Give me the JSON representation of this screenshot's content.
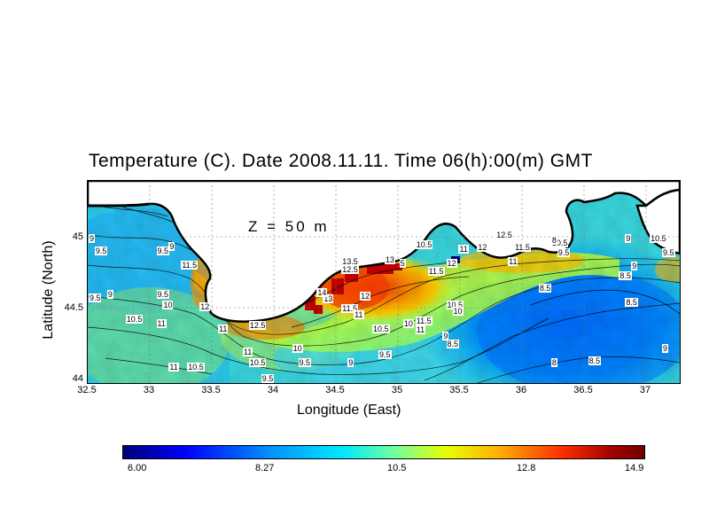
{
  "title": "Temperature (C). Date 2008.11.11. Time 06(h):00(m) GMT",
  "depth_label": "Z = 50 m",
  "axes": {
    "xlabel": "Longitude (East)",
    "ylabel": "Latitude (North)",
    "xticks": [
      "32.5",
      "33",
      "33.5",
      "34",
      "34.5",
      "35",
      "35.5",
      "36",
      "36.5",
      "37"
    ],
    "yticks": [
      "45",
      "44.5",
      "44"
    ],
    "xlim": [
      32.5,
      37.3
    ],
    "ylim": [
      44,
      45.3
    ]
  },
  "colorbar": {
    "labels": [
      "6.00",
      "8.27",
      "10.5",
      "12.8",
      "14.9"
    ],
    "min": 6.0,
    "max": 14.9
  },
  "contour_labels": [
    {
      "text": "9.5",
      "lon": 32.6,
      "lat": 44.85
    },
    {
      "text": "9.5",
      "lon": 33.1,
      "lat": 44.85
    },
    {
      "text": "9",
      "lon": 33.2,
      "lat": 44.88
    },
    {
      "text": "9.5",
      "lon": 32.55,
      "lat": 44.55
    },
    {
      "text": "9",
      "lon": 32.7,
      "lat": 44.57
    },
    {
      "text": "9.5",
      "lon": 33.1,
      "lat": 44.57
    },
    {
      "text": "11.5",
      "lon": 33.3,
      "lat": 44.76
    },
    {
      "text": "10",
      "lon": 33.15,
      "lat": 44.5
    },
    {
      "text": "12",
      "lon": 33.45,
      "lat": 44.49
    },
    {
      "text": "10.5",
      "lon": 32.85,
      "lat": 44.41
    },
    {
      "text": "11",
      "lon": 33.1,
      "lat": 44.38
    },
    {
      "text": "11",
      "lon": 33.6,
      "lat": 44.35
    },
    {
      "text": "12.5",
      "lon": 33.85,
      "lat": 44.37
    },
    {
      "text": "11",
      "lon": 33.8,
      "lat": 44.2
    },
    {
      "text": "11",
      "lon": 33.2,
      "lat": 44.1
    },
    {
      "text": "10.5",
      "lon": 33.35,
      "lat": 44.1
    },
    {
      "text": "10.5",
      "lon": 33.85,
      "lat": 44.13
    },
    {
      "text": "9.5",
      "lon": 33.95,
      "lat": 44.03
    },
    {
      "text": "10",
      "lon": 34.2,
      "lat": 44.22
    },
    {
      "text": "9.5",
      "lon": 34.25,
      "lat": 44.13
    },
    {
      "text": "13",
      "lon": 34.45,
      "lat": 44.54
    },
    {
      "text": "14",
      "lon": 34.4,
      "lat": 44.58
    },
    {
      "text": "13.5",
      "lon": 34.6,
      "lat": 44.78
    },
    {
      "text": "12.5",
      "lon": 34.6,
      "lat": 44.73
    },
    {
      "text": "12",
      "lon": 34.75,
      "lat": 44.56
    },
    {
      "text": "11.5",
      "lon": 34.6,
      "lat": 44.48
    },
    {
      "text": "11",
      "lon": 34.7,
      "lat": 44.44
    },
    {
      "text": "9",
      "lon": 34.65,
      "lat": 44.13
    },
    {
      "text": "13",
      "lon": 34.95,
      "lat": 44.79
    },
    {
      "text": "5",
      "lon": 35.07,
      "lat": 44.77
    },
    {
      "text": "10.5",
      "lon": 34.85,
      "lat": 44.35
    },
    {
      "text": "10",
      "lon": 35.1,
      "lat": 44.38
    },
    {
      "text": "11.5",
      "lon": 35.2,
      "lat": 44.4
    },
    {
      "text": "11",
      "lon": 35.2,
      "lat": 44.34
    },
    {
      "text": "9.5",
      "lon": 34.9,
      "lat": 44.18
    },
    {
      "text": "10.5",
      "lon": 35.2,
      "lat": 44.89
    },
    {
      "text": "12",
      "lon": 35.45,
      "lat": 44.77
    },
    {
      "text": "11.5",
      "lon": 35.3,
      "lat": 44.72
    },
    {
      "text": "10.5",
      "lon": 35.45,
      "lat": 44.5
    },
    {
      "text": "10",
      "lon": 35.5,
      "lat": 44.46
    },
    {
      "text": "9",
      "lon": 35.42,
      "lat": 44.3
    },
    {
      "text": "8.5",
      "lon": 35.45,
      "lat": 44.25
    },
    {
      "text": "11",
      "lon": 35.55,
      "lat": 44.86
    },
    {
      "text": "12",
      "lon": 35.7,
      "lat": 44.87
    },
    {
      "text": "12.5",
      "lon": 35.85,
      "lat": 44.95
    },
    {
      "text": "11.5",
      "lon": 36.0,
      "lat": 44.87
    },
    {
      "text": "11",
      "lon": 35.95,
      "lat": 44.78
    },
    {
      "text": "10.5",
      "lon": 36.3,
      "lat": 44.9
    },
    {
      "text": "9.5",
      "lon": 36.35,
      "lat": 44.84
    },
    {
      "text": "8.5",
      "lon": 36.2,
      "lat": 44.61
    },
    {
      "text": "8",
      "lon": 36.3,
      "lat": 44.13
    },
    {
      "text": "8.5",
      "lon": 36.6,
      "lat": 44.14
    },
    {
      "text": "8.5",
      "lon": 36.85,
      "lat": 44.69
    },
    {
      "text": "9",
      "lon": 36.95,
      "lat": 44.75
    },
    {
      "text": "8.5",
      "lon": 36.9,
      "lat": 44.52
    },
    {
      "text": "9",
      "lon": 36.9,
      "lat": 44.93
    },
    {
      "text": "10.5",
      "lon": 37.1,
      "lat": 44.93
    },
    {
      "text": "9.5",
      "lon": 37.2,
      "lat": 44.84
    },
    {
      "text": "9",
      "lon": 37.25,
      "lat": 44.22
    },
    {
      "text": "9",
      "lon": 32.55,
      "lat": 44.93
    },
    {
      "text": "8",
      "lon": 36.3,
      "lat": 44.92
    }
  ]
}
